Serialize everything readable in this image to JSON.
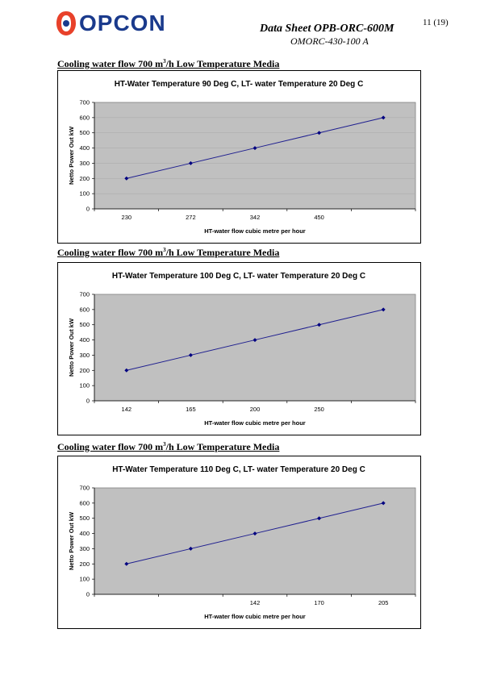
{
  "header": {
    "logo_text": "OPCON",
    "doc_title": "Data Sheet OPB-ORC-600M",
    "doc_subtitle": "OMORC-430-100 A",
    "page_number": "11 (19)"
  },
  "sections": [
    {
      "heading_pre": "Cooling water flow 700 m",
      "heading_sup": "3",
      "heading_post": "/h Low Temperature Media"
    },
    {
      "heading_pre": "Cooling water flow 700 m",
      "heading_sup": "3",
      "heading_post": "/h Low Temperature Media"
    },
    {
      "heading_pre": "Cooling water flow 700 m",
      "heading_sup": "3",
      "heading_post": "/h Low Temperature Media"
    }
  ],
  "colors": {
    "plot_bg": "#c0c0c0",
    "line": "#1f1f8f",
    "logo": "#1a3a8c",
    "logo_ring": "#e8412a"
  },
  "chart_data": [
    {
      "type": "line",
      "title": "HT-Water Temperature 90 Deg C, LT- water Temperature 20 Deg C",
      "xlabel": "HT-water flow cubic metre per hour",
      "ylabel": "Netto Power Out kW",
      "categories": [
        "230",
        "272",
        "342",
        "450",
        ""
      ],
      "tick_offset": 0,
      "values": [
        200,
        300,
        400,
        500,
        600
      ],
      "ylim": [
        0,
        700
      ],
      "yticks": [
        0,
        100,
        200,
        300,
        400,
        500,
        600,
        700
      ],
      "grid": true
    },
    {
      "type": "line",
      "title": "HT-Water Temperature 100 Deg C, LT- water Temperature 20 Deg C",
      "xlabel": "HT-water flow cubic metre per hour",
      "ylabel": "Netto Power Out kW",
      "categories": [
        "142",
        "165",
        "200",
        "250",
        ""
      ],
      "tick_offset": 0,
      "values": [
        200,
        300,
        400,
        500,
        600
      ],
      "ylim": [
        0,
        700
      ],
      "yticks": [
        0,
        100,
        200,
        300,
        400,
        500,
        600,
        700
      ],
      "grid": false
    },
    {
      "type": "line",
      "title": "HT-Water Temperature 110 Deg C, LT- water Temperature 20 Deg C",
      "xlabel": "HT-water flow cubic metre per hour",
      "ylabel": "Netto Power Out kW",
      "categories": [
        "",
        "",
        "142",
        "170",
        "205"
      ],
      "tick_offset": 0,
      "values": [
        200,
        300,
        400,
        500,
        600
      ],
      "ylim": [
        0,
        700
      ],
      "yticks": [
        0,
        100,
        200,
        300,
        400,
        500,
        600,
        700
      ],
      "grid": false
    }
  ]
}
